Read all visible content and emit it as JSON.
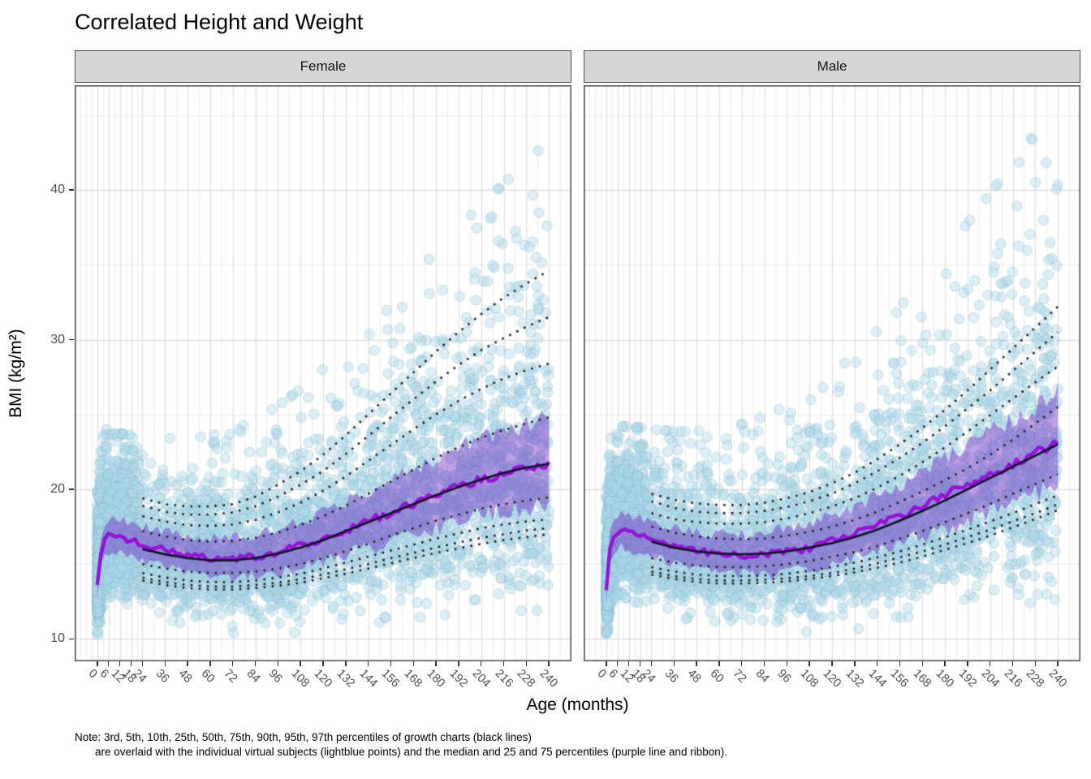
{
  "title": "Correlated Height and Weight",
  "facets": [
    "Female",
    "Male"
  ],
  "caption": {
    "line1": "Note: 3rd, 5th, 10th, 25th, 50th, 75th, 90th, 95th, 97th percentiles of growth charts (black lines)",
    "line2": "are overlaid with the individual virtual subjects (lightblue points) and the median and 25 and 75 percentiles (purple line and ribbon)."
  },
  "axes": {
    "x": {
      "label": "Age (months)",
      "breaks": [
        0,
        6,
        12,
        18,
        24,
        36,
        48,
        60,
        72,
        84,
        96,
        108,
        120,
        132,
        144,
        156,
        168,
        180,
        192,
        204,
        216,
        228,
        240
      ],
      "domain": [
        -12,
        252
      ]
    },
    "y": {
      "label": "BMI (kg/m²)",
      "breaks": [
        10,
        20,
        30,
        40
      ],
      "minor": [
        15,
        25,
        35,
        45
      ],
      "domain": [
        8.5,
        47
      ]
    }
  },
  "colors": {
    "strip_bg": "#d6d6d6",
    "strip_border": "#4d4d4d",
    "strip_text": "#141414",
    "panel_bg": "#ffffff",
    "panel_border": "#4d4d4d",
    "grid_major": "#e0e0e0",
    "grid_minor": "#ededed",
    "scatter_fill": "rgba(173,216,230,0.42)",
    "scatter_stroke": "rgba(126,180,205,0.38)",
    "ribbon_fill": "rgba(100,20,190,0.40)",
    "median_line": "rgba(150,10,215,0.92)",
    "growth_solid": "#15152b",
    "growth_dotted": "#2b2b2b",
    "tick_text": "#4d4d4d"
  },
  "chart_data": {
    "type": "scatter",
    "title": "Correlated Height and Weight",
    "xlabel": "Age (months)",
    "ylabel": "BMI (kg/m²)",
    "xlim": [
      -12,
      252
    ],
    "ylim": [
      8.5,
      47
    ],
    "grid": "on",
    "legend": "none",
    "facet_labels": [
      "Female",
      "Male"
    ],
    "growth_chart_percentile_ages": [
      24,
      36,
      48,
      60,
      72,
      84,
      96,
      108,
      120,
      132,
      144,
      156,
      168,
      180,
      192,
      204,
      216,
      228,
      240
    ],
    "panels": [
      {
        "facet": "Female",
        "percentiles": {
          "p97": [
            19.4,
            19.0,
            18.85,
            18.85,
            19.0,
            19.5,
            20.3,
            21.2,
            22.3,
            23.6,
            25.0,
            26.4,
            27.8,
            29.2,
            30.5,
            31.7,
            32.8,
            33.75,
            34.6
          ],
          "p95": [
            18.9,
            18.5,
            18.3,
            18.3,
            18.45,
            18.85,
            19.5,
            20.3,
            21.2,
            22.35,
            23.55,
            24.8,
            26.0,
            27.2,
            28.3,
            29.3,
            30.1,
            30.85,
            31.5
          ],
          "p90": [
            18.2,
            17.85,
            17.6,
            17.55,
            17.65,
            17.95,
            18.45,
            19.1,
            19.9,
            20.85,
            21.9,
            22.95,
            24.0,
            25.0,
            25.9,
            26.7,
            27.4,
            27.95,
            28.4
          ],
          "p75": [
            17.2,
            16.85,
            16.6,
            16.5,
            16.55,
            16.75,
            17.1,
            17.6,
            18.2,
            18.9,
            19.7,
            20.5,
            21.3,
            22.1,
            22.8,
            23.45,
            23.95,
            24.4,
            24.8
          ],
          "p50": [
            16.0,
            15.65,
            15.4,
            15.25,
            15.25,
            15.4,
            15.7,
            16.1,
            16.6,
            17.2,
            17.8,
            18.4,
            19.0,
            19.6,
            20.15,
            20.65,
            21.1,
            21.45,
            21.7
          ],
          "p25": [
            15.0,
            14.7,
            14.5,
            14.4,
            14.4,
            14.5,
            14.7,
            15.0,
            15.4,
            15.85,
            16.35,
            16.9,
            17.4,
            17.9,
            18.3,
            18.7,
            19.0,
            19.25,
            19.45
          ],
          "p10": [
            14.4,
            14.1,
            13.9,
            13.8,
            13.8,
            13.9,
            14.1,
            14.35,
            14.7,
            15.1,
            15.5,
            15.9,
            16.3,
            16.7,
            17.05,
            17.4,
            17.65,
            17.85,
            18.0
          ],
          "p5": [
            14.1,
            13.8,
            13.6,
            13.5,
            13.5,
            13.6,
            13.75,
            14.0,
            14.3,
            14.65,
            15.0,
            15.4,
            15.75,
            16.1,
            16.45,
            16.75,
            17.0,
            17.25,
            17.4
          ],
          "p3": [
            13.9,
            13.6,
            13.4,
            13.3,
            13.3,
            13.4,
            13.55,
            13.75,
            14.05,
            14.35,
            14.7,
            15.05,
            15.4,
            15.75,
            16.05,
            16.35,
            16.6,
            16.8,
            17.0
          ]
        },
        "subject_median": {
          "ages": [
            0,
            2,
            4,
            6,
            9,
            12,
            18,
            24,
            36,
            48,
            60,
            72,
            84,
            96,
            108,
            120,
            132,
            144,
            156,
            168,
            180,
            192,
            204,
            216,
            228,
            240
          ],
          "values": [
            13.6,
            15.8,
            16.6,
            16.9,
            16.9,
            16.8,
            16.55,
            16.35,
            15.95,
            15.6,
            15.4,
            15.35,
            15.5,
            15.8,
            16.2,
            16.7,
            17.25,
            17.85,
            18.45,
            19.05,
            19.6,
            20.15,
            20.6,
            21.0,
            21.4,
            21.75
          ]
        }
      },
      {
        "facet": "Male",
        "percentiles": {
          "p97": [
            19.7,
            19.3,
            19.05,
            18.95,
            18.95,
            19.1,
            19.4,
            19.8,
            20.4,
            21.1,
            22.0,
            23.0,
            24.1,
            25.3,
            26.6,
            28.0,
            29.4,
            30.8,
            32.2
          ],
          "p95": [
            19.2,
            18.75,
            18.5,
            18.4,
            18.4,
            18.55,
            18.8,
            19.2,
            19.7,
            20.4,
            21.2,
            22.1,
            23.1,
            24.2,
            25.4,
            26.6,
            27.9,
            29.2,
            30.5
          ],
          "p90": [
            18.4,
            18.0,
            17.8,
            17.7,
            17.7,
            17.8,
            18.05,
            18.4,
            18.85,
            19.4,
            20.1,
            20.9,
            21.8,
            22.8,
            23.85,
            24.95,
            26.05,
            27.15,
            28.2
          ],
          "p75": [
            17.5,
            17.1,
            16.85,
            16.7,
            16.65,
            16.7,
            16.9,
            17.15,
            17.5,
            17.95,
            18.5,
            19.15,
            19.85,
            20.6,
            21.4,
            22.3,
            23.3,
            24.4,
            25.5
          ],
          "p50": [
            16.5,
            16.1,
            15.85,
            15.7,
            15.65,
            15.7,
            15.85,
            16.1,
            16.4,
            16.8,
            17.3,
            17.9,
            18.55,
            19.25,
            20.0,
            20.75,
            21.5,
            22.25,
            23.0
          ],
          "p25": [
            15.4,
            15.1,
            14.9,
            14.8,
            14.8,
            14.85,
            15.0,
            15.2,
            15.5,
            15.8,
            16.2,
            16.7,
            17.2,
            17.8,
            18.4,
            19.0,
            19.7,
            20.35,
            21.0
          ],
          "p10": [
            14.8,
            14.5,
            14.3,
            14.2,
            14.2,
            14.25,
            14.35,
            14.55,
            14.8,
            15.1,
            15.45,
            15.85,
            16.3,
            16.8,
            17.3,
            17.85,
            18.4,
            19.0,
            19.6
          ],
          "p5": [
            14.5,
            14.2,
            14.0,
            13.9,
            13.9,
            13.95,
            14.05,
            14.2,
            14.4,
            14.7,
            15.05,
            15.45,
            15.85,
            16.3,
            16.8,
            17.3,
            17.85,
            18.4,
            19.0
          ],
          "p3": [
            14.3,
            14.0,
            13.8,
            13.7,
            13.7,
            13.75,
            13.85,
            14.0,
            14.2,
            14.45,
            14.75,
            15.1,
            15.5,
            15.95,
            16.4,
            16.9,
            17.45,
            18.0,
            18.6
          ]
        },
        "subject_median": {
          "ages": [
            0,
            2,
            4,
            6,
            9,
            12,
            18,
            24,
            36,
            48,
            60,
            72,
            84,
            96,
            108,
            120,
            132,
            144,
            156,
            168,
            180,
            192,
            204,
            216,
            228,
            240
          ],
          "values": [
            13.4,
            16.0,
            16.9,
            17.2,
            17.25,
            17.1,
            16.9,
            16.65,
            16.2,
            15.9,
            15.7,
            15.6,
            15.65,
            15.8,
            16.1,
            16.5,
            17.0,
            17.6,
            18.2,
            18.9,
            19.6,
            20.3,
            21.0,
            21.7,
            22.4,
            23.1
          ]
        }
      }
    ],
    "ribbon": {
      "quantiles": [
        25,
        75
      ],
      "q_factor": 0.67,
      "sigma_base": 0.095,
      "sigma_slope": 0.105,
      "noise_base": 0.28,
      "noise_slope": 0.42
    },
    "scatter": {
      "n_per_panel": 4200,
      "seed": 1337,
      "radius": 6.2,
      "sigma_base": 0.1,
      "sigma_slope": 0.115,
      "upper_skew": 1.3,
      "z_clip": [
        -2.8,
        3.2
      ],
      "age_max": 240,
      "infant_frac": 0.3,
      "newborn_frac": 0.06
    }
  }
}
